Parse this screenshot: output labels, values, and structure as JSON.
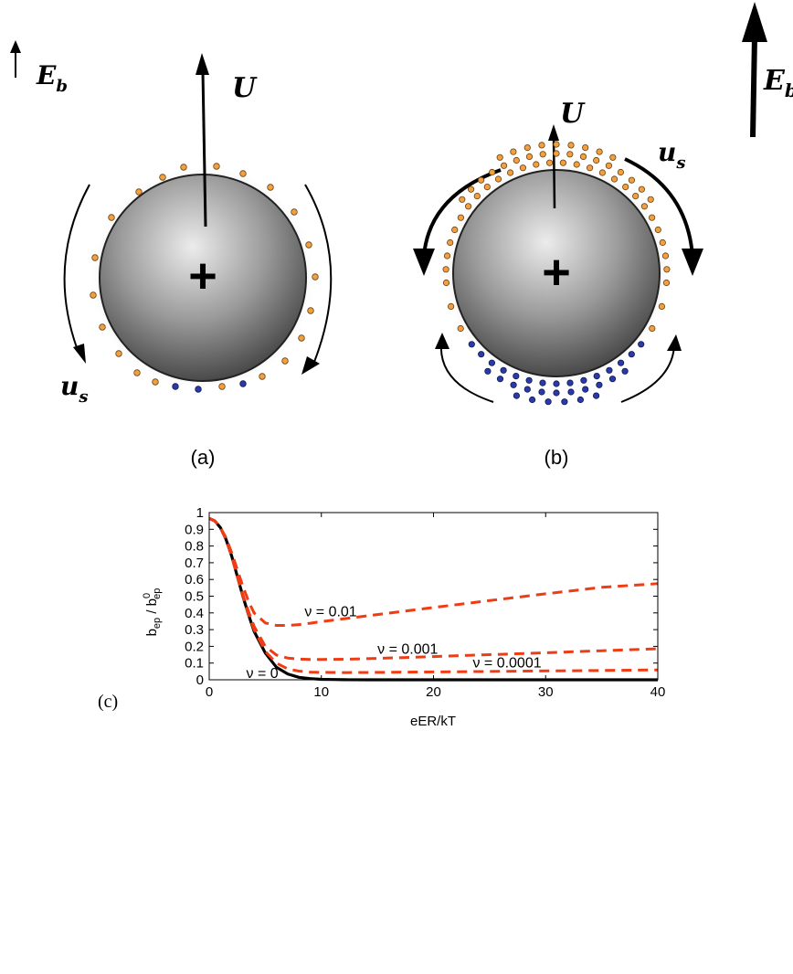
{
  "figure": {
    "panel_a": {
      "field_symbol": "E",
      "field_subscript": "b",
      "velocity_symbol": "U",
      "slip_symbol": "u",
      "slip_subscript": "s",
      "particle_charge": "+",
      "label": "(a)"
    },
    "panel_b": {
      "field_symbol": "E",
      "field_subscript": "b",
      "velocity_symbol": "U",
      "slip_symbol": "u",
      "slip_subscript": "s",
      "particle_charge": "+",
      "label": "(b)"
    },
    "panel_c_label": "(c)",
    "colors": {
      "counterion": "#f0a040",
      "coion": "#2a3aa8",
      "sphere_light": "#e6e6e6",
      "sphere_dark": "#4a4a4a",
      "curve_red": "#f03c14",
      "curve_black": "#000000"
    }
  },
  "chart_data": {
    "type": "line",
    "xlabel": "eER/kT",
    "ylabel": "b_ep / b_ep^0",
    "ylabel_parts": {
      "base1": "b",
      "sub1": "ep",
      "slash": " / ",
      "base2": "b",
      "sup2": "0",
      "sub2": "ep"
    },
    "xlim": [
      0,
      40
    ],
    "ylim": [
      0,
      1
    ],
    "xticks": [
      "0",
      "10",
      "20",
      "30",
      "40"
    ],
    "yticks": [
      "0",
      "0.1",
      "0.2",
      "0.3",
      "0.4",
      "0.5",
      "0.6",
      "0.7",
      "0.8",
      "0.9",
      "1"
    ],
    "grid": false,
    "series": [
      {
        "name": "ν = 0",
        "style": "solid",
        "color": "#000000",
        "x": [
          0,
          0.5,
          1,
          1.5,
          2,
          2.5,
          3,
          3.5,
          4,
          5,
          6,
          7,
          8,
          9,
          10,
          11,
          12,
          14,
          16,
          20,
          25,
          30,
          40
        ],
        "y": [
          0.965,
          0.95,
          0.91,
          0.84,
          0.74,
          0.62,
          0.5,
          0.39,
          0.29,
          0.16,
          0.075,
          0.035,
          0.015,
          0.007,
          0.003,
          0.0015,
          0.0007,
          0.0002,
          0.0001,
          0,
          0,
          0,
          0
        ]
      },
      {
        "name": "ν = 0.0001",
        "style": "dashed",
        "color": "#f03c14",
        "x": [
          0,
          0.5,
          1,
          1.5,
          2,
          2.5,
          3,
          3.5,
          4,
          5,
          6,
          7,
          8,
          9,
          10,
          12,
          15,
          20,
          25,
          30,
          35,
          40
        ],
        "y": [
          0.965,
          0.95,
          0.91,
          0.84,
          0.74,
          0.62,
          0.5,
          0.39,
          0.3,
          0.17,
          0.1,
          0.065,
          0.052,
          0.046,
          0.044,
          0.043,
          0.044,
          0.047,
          0.05,
          0.053,
          0.056,
          0.059
        ]
      },
      {
        "name": "ν = 0.001",
        "style": "dashed",
        "color": "#f03c14",
        "x": [
          0,
          0.5,
          1,
          1.5,
          2,
          2.5,
          3,
          3.5,
          4,
          5,
          6,
          7,
          8,
          9,
          10,
          12,
          15,
          20,
          25,
          30,
          35,
          40
        ],
        "y": [
          0.965,
          0.95,
          0.91,
          0.84,
          0.74,
          0.62,
          0.51,
          0.41,
          0.32,
          0.2,
          0.148,
          0.13,
          0.124,
          0.122,
          0.122,
          0.123,
          0.128,
          0.139,
          0.15,
          0.162,
          0.174,
          0.186
        ]
      },
      {
        "name": "ν = 0.01",
        "style": "dashed",
        "color": "#f03c14",
        "x": [
          0,
          0.5,
          1,
          1.5,
          2,
          2.5,
          3,
          3.5,
          4,
          5,
          6,
          7,
          8,
          9,
          10,
          12,
          15,
          20,
          25,
          30,
          35,
          40
        ],
        "y": [
          0.965,
          0.95,
          0.91,
          0.85,
          0.76,
          0.66,
          0.56,
          0.47,
          0.4,
          0.34,
          0.325,
          0.325,
          0.33,
          0.338,
          0.348,
          0.365,
          0.39,
          0.432,
          0.474,
          0.514,
          0.553,
          0.575
        ]
      }
    ],
    "annotations": [
      {
        "text": "ν = 0.01",
        "x": 8.5,
        "y": 0.38
      },
      {
        "text": "ν = 0.001",
        "x": 15,
        "y": 0.155
      },
      {
        "text": "ν = 0.0001",
        "x": 23.5,
        "y": 0.074
      },
      {
        "text": "ν = 0",
        "x": 3.3,
        "y": 0.01
      }
    ]
  }
}
